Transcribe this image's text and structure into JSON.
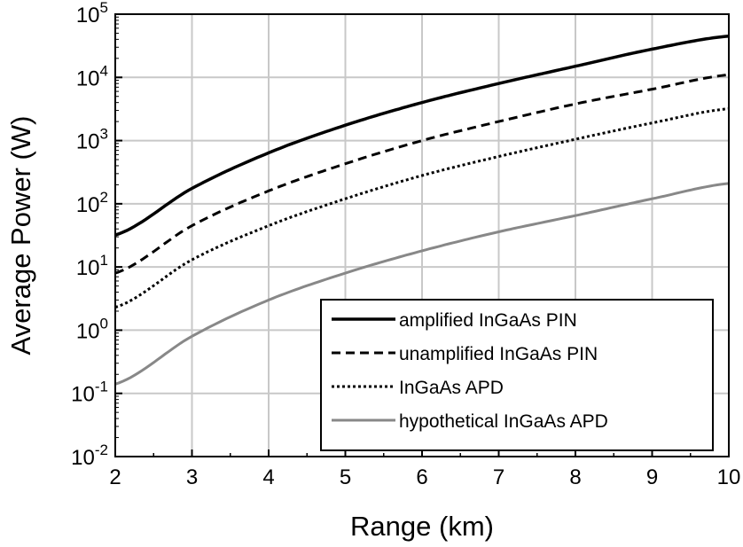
{
  "chart_data": {
    "type": "line",
    "title": "",
    "xlabel": "Range (km)",
    "ylabel": "Average Power (W)",
    "xlim": [
      2,
      10
    ],
    "ylim_log10": [
      -2,
      5
    ],
    "yscale": "log",
    "grid": true,
    "legend_position": "bottom-right",
    "x_ticks": [
      "2",
      "3",
      "4",
      "5",
      "6",
      "7",
      "8",
      "9",
      "10"
    ],
    "y_ticks": [
      {
        "base": "10",
        "exp": "-2"
      },
      {
        "base": "10",
        "exp": "-1"
      },
      {
        "base": "10",
        "exp": "0"
      },
      {
        "base": "10",
        "exp": "1"
      },
      {
        "base": "10",
        "exp": "2"
      },
      {
        "base": "10",
        "exp": "3"
      },
      {
        "base": "10",
        "exp": "4"
      },
      {
        "base": "10",
        "exp": "5"
      }
    ],
    "x": [
      2,
      3,
      4,
      5,
      6,
      7,
      8,
      9,
      10
    ],
    "series": [
      {
        "name": "amplified InGaAs PIN",
        "color": "#000000",
        "dash": "solid",
        "values": [
          32,
          175,
          640,
          1750,
          4000,
          8000,
          15000,
          28000,
          45000
        ]
      },
      {
        "name": "unamplified InGaAs PIN",
        "color": "#000000",
        "dash": "dashed",
        "values": [
          8,
          45,
          160,
          430,
          1000,
          2000,
          3800,
          6500,
          11000
        ]
      },
      {
        "name": "InGaAs APD",
        "color": "#000000",
        "dash": "dotted",
        "values": [
          2.3,
          13,
          45,
          120,
          280,
          560,
          1050,
          1900,
          3200
        ]
      },
      {
        "name": "hypothetical InGaAs APD",
        "color": "#888888",
        "dash": "solid",
        "values": [
          0.14,
          0.8,
          3,
          8,
          18,
          36,
          65,
          120,
          210
        ]
      }
    ]
  }
}
